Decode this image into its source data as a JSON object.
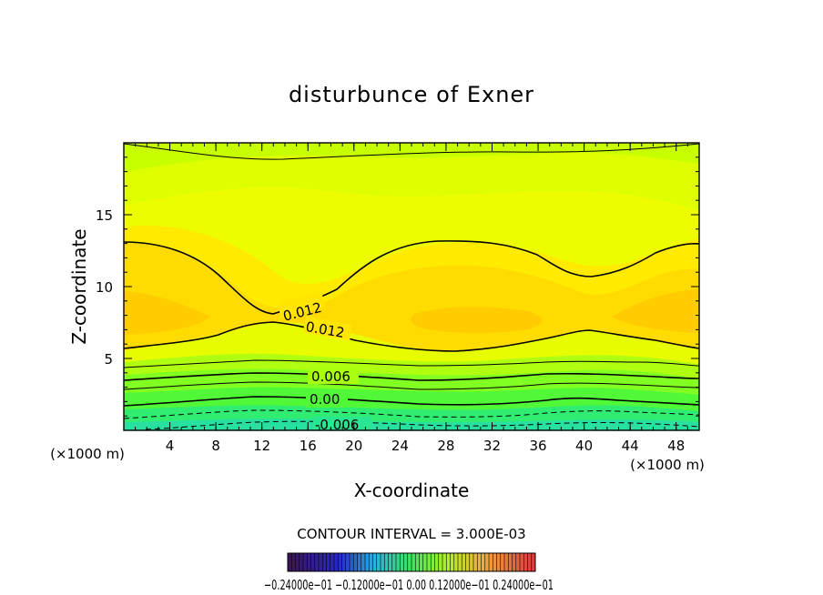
{
  "chart_data": {
    "type": "contour",
    "title": "disturbunce of Exner",
    "xlabel": "X-coordinate",
    "ylabel": "Z-coordinate",
    "x_unit": "(×1000 m)",
    "x_ticks": [
      4,
      8,
      12,
      16,
      20,
      24,
      28,
      32,
      36,
      40,
      44,
      48
    ],
    "y_ticks": [
      5,
      10,
      15
    ],
    "xlim": [
      0,
      50
    ],
    "ylim": [
      0,
      20
    ],
    "contour_interval_text": "CONTOUR INTERVAL = 3.000E-03",
    "contour_labels": [
      {
        "text": "0.012",
        "x": 15.5,
        "z": 8.7
      },
      {
        "text": "0.012",
        "x": 17.5,
        "z": 6.7
      },
      {
        "text": "0.006",
        "x": 18.0,
        "z": 3.8
      },
      {
        "text": "0.00",
        "x": 17.5,
        "z": 2.1
      },
      {
        "text": "-0.006",
        "x": 19.0,
        "z": 0.4
      }
    ],
    "colorbar_label_text": "−0.24000e−01 −0.12000e−01 0.00 0.12000e−01 0.24000e−01",
    "colorbar_range": [
      -0.024,
      0.024
    ],
    "colors": {
      "field_low": "#28e88a",
      "field_mid": "#80ff20",
      "field_top": "#c8ff00",
      "field_high": "#ffd400",
      "field_peak": "#ffb400"
    }
  }
}
